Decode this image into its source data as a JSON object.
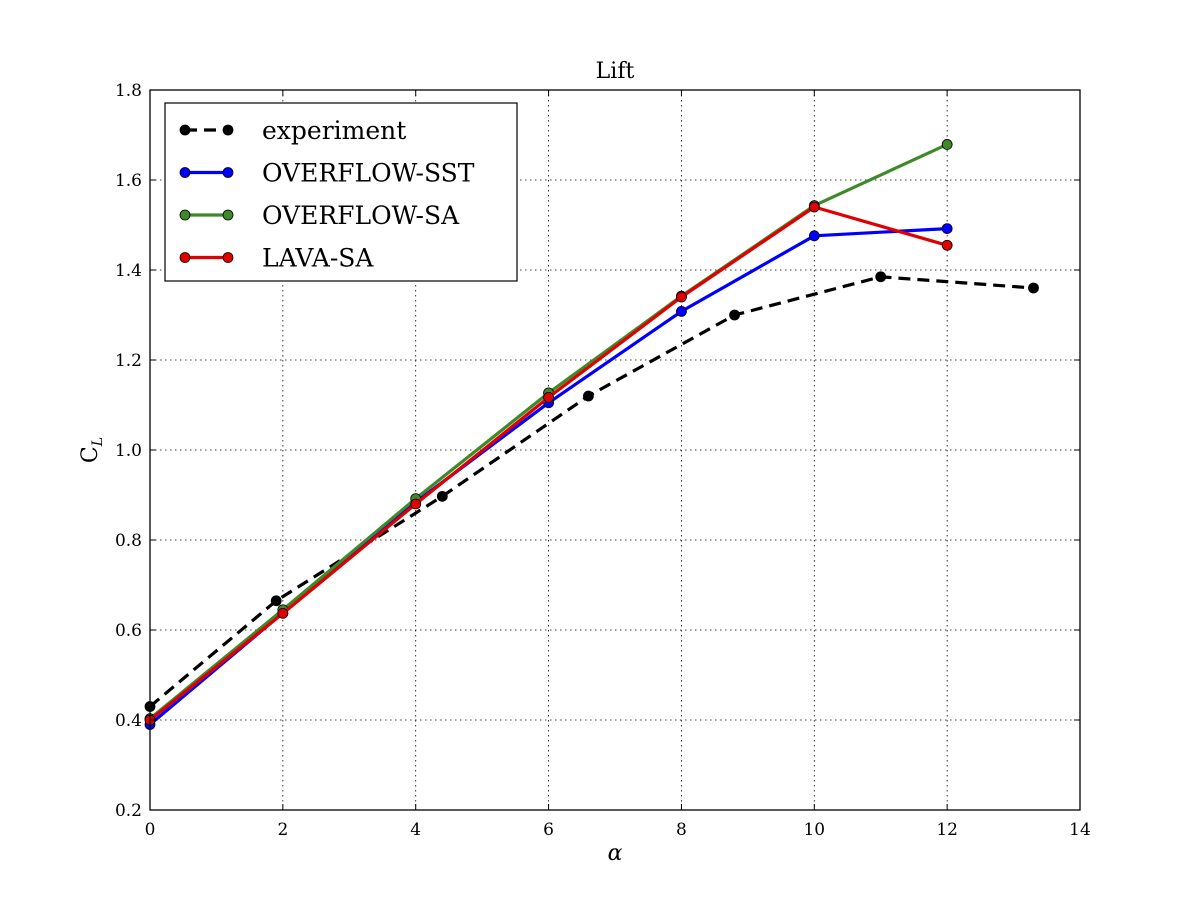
{
  "chart_data": {
    "type": "line",
    "title": "Lift",
    "xlabel": "α",
    "ylabel_main": "C",
    "ylabel_sub": "L",
    "xlim": [
      0,
      14
    ],
    "ylim": [
      0.2,
      1.8
    ],
    "xticks": [
      0,
      2,
      4,
      6,
      8,
      10,
      12,
      14
    ],
    "yticks": [
      0.2,
      0.4,
      0.6,
      0.8,
      1.0,
      1.2,
      1.4,
      1.6,
      1.8
    ],
    "xtick_labels": [
      "0",
      "2",
      "4",
      "6",
      "8",
      "10",
      "12",
      "14"
    ],
    "ytick_labels": [
      "0.2",
      "0.4",
      "0.6",
      "0.8",
      "1.0",
      "1.2",
      "1.4",
      "1.6",
      "1.8"
    ],
    "grid": true,
    "legend_position": "top-left",
    "series": [
      {
        "name": "experiment",
        "color": "#000000",
        "dashed": true,
        "x": [
          0.0,
          1.9,
          4.4,
          6.6,
          8.8,
          11.0,
          13.3
        ],
        "y": [
          0.43,
          0.665,
          0.897,
          1.12,
          1.3,
          1.385,
          1.36
        ]
      },
      {
        "name": "OVERFLOW-SST",
        "color": "#0000ff",
        "dashed": false,
        "x": [
          0,
          2,
          4,
          6,
          8,
          10,
          12
        ],
        "y": [
          0.39,
          0.638,
          0.884,
          1.105,
          1.308,
          1.476,
          1.492
        ]
      },
      {
        "name": "OVERFLOW-SA",
        "color": "#3f8a28",
        "dashed": false,
        "x": [
          0,
          2,
          4,
          6,
          8,
          10,
          12
        ],
        "y": [
          0.403,
          0.645,
          0.892,
          1.127,
          1.342,
          1.543,
          1.679
        ]
      },
      {
        "name": "LAVA-SA",
        "color": "#e00000",
        "dashed": false,
        "x": [
          0,
          2,
          4,
          6,
          8,
          10,
          12
        ],
        "y": [
          0.4,
          0.637,
          0.88,
          1.117,
          1.34,
          1.54,
          1.455
        ]
      }
    ]
  }
}
